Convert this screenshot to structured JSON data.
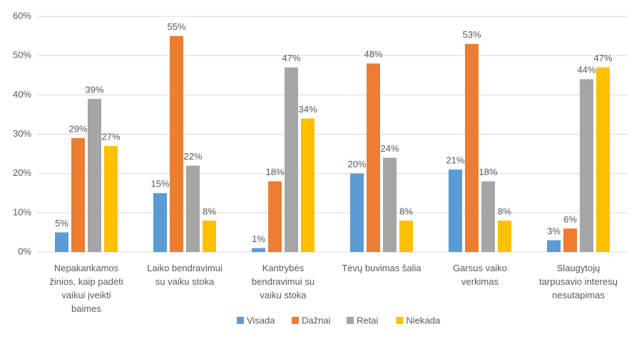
{
  "chart_data": {
    "type": "bar",
    "categories": [
      "Nepakankamos žinios, kaip padėti vaikui įveikti baimes",
      "Laiko bendravimui su vaiku stoka",
      "Kantrybės bendravimui su vaiku stoka",
      "Tėvų buvimas šalia",
      "Garsus vaiko verkimas",
      "Slaugytojų tarpusavio interesų nesutapimas"
    ],
    "series": [
      {
        "name": "Visada",
        "color": "#5b9bd5",
        "values": [
          5,
          15,
          1,
          20,
          21,
          3
        ],
        "value_labels": [
          "5%",
          "15%",
          "1%",
          "20%",
          "21%",
          "3%"
        ]
      },
      {
        "name": "Dažnai",
        "color": "#ed7d31",
        "values": [
          29,
          55,
          18,
          48,
          53,
          6
        ],
        "value_labels": [
          "29%",
          "55%",
          "18%",
          "48%",
          "53%",
          "6%"
        ]
      },
      {
        "name": "Retai",
        "color": "#a5a5a5",
        "values": [
          39,
          22,
          47,
          24,
          18,
          44
        ],
        "value_labels": [
          "39%",
          "22%",
          "47%",
          "24%",
          "18%",
          "44%"
        ]
      },
      {
        "name": "Niekada",
        "color": "#ffc000",
        "values": [
          27,
          8,
          34,
          8,
          8,
          47
        ],
        "value_labels": [
          "27%",
          "8%",
          "34%",
          "8%",
          "8%",
          "47%"
        ]
      }
    ],
    "ylim": [
      0,
      60
    ],
    "yticks": [
      {
        "value": 0,
        "label": "0%"
      },
      {
        "value": 10,
        "label": "10%"
      },
      {
        "value": 20,
        "label": "20%"
      },
      {
        "value": 30,
        "label": "30%"
      },
      {
        "value": 40,
        "label": "40%"
      },
      {
        "value": 50,
        "label": "50%"
      },
      {
        "value": 60,
        "label": "60%"
      }
    ],
    "grid": true,
    "legend": "bottom"
  }
}
